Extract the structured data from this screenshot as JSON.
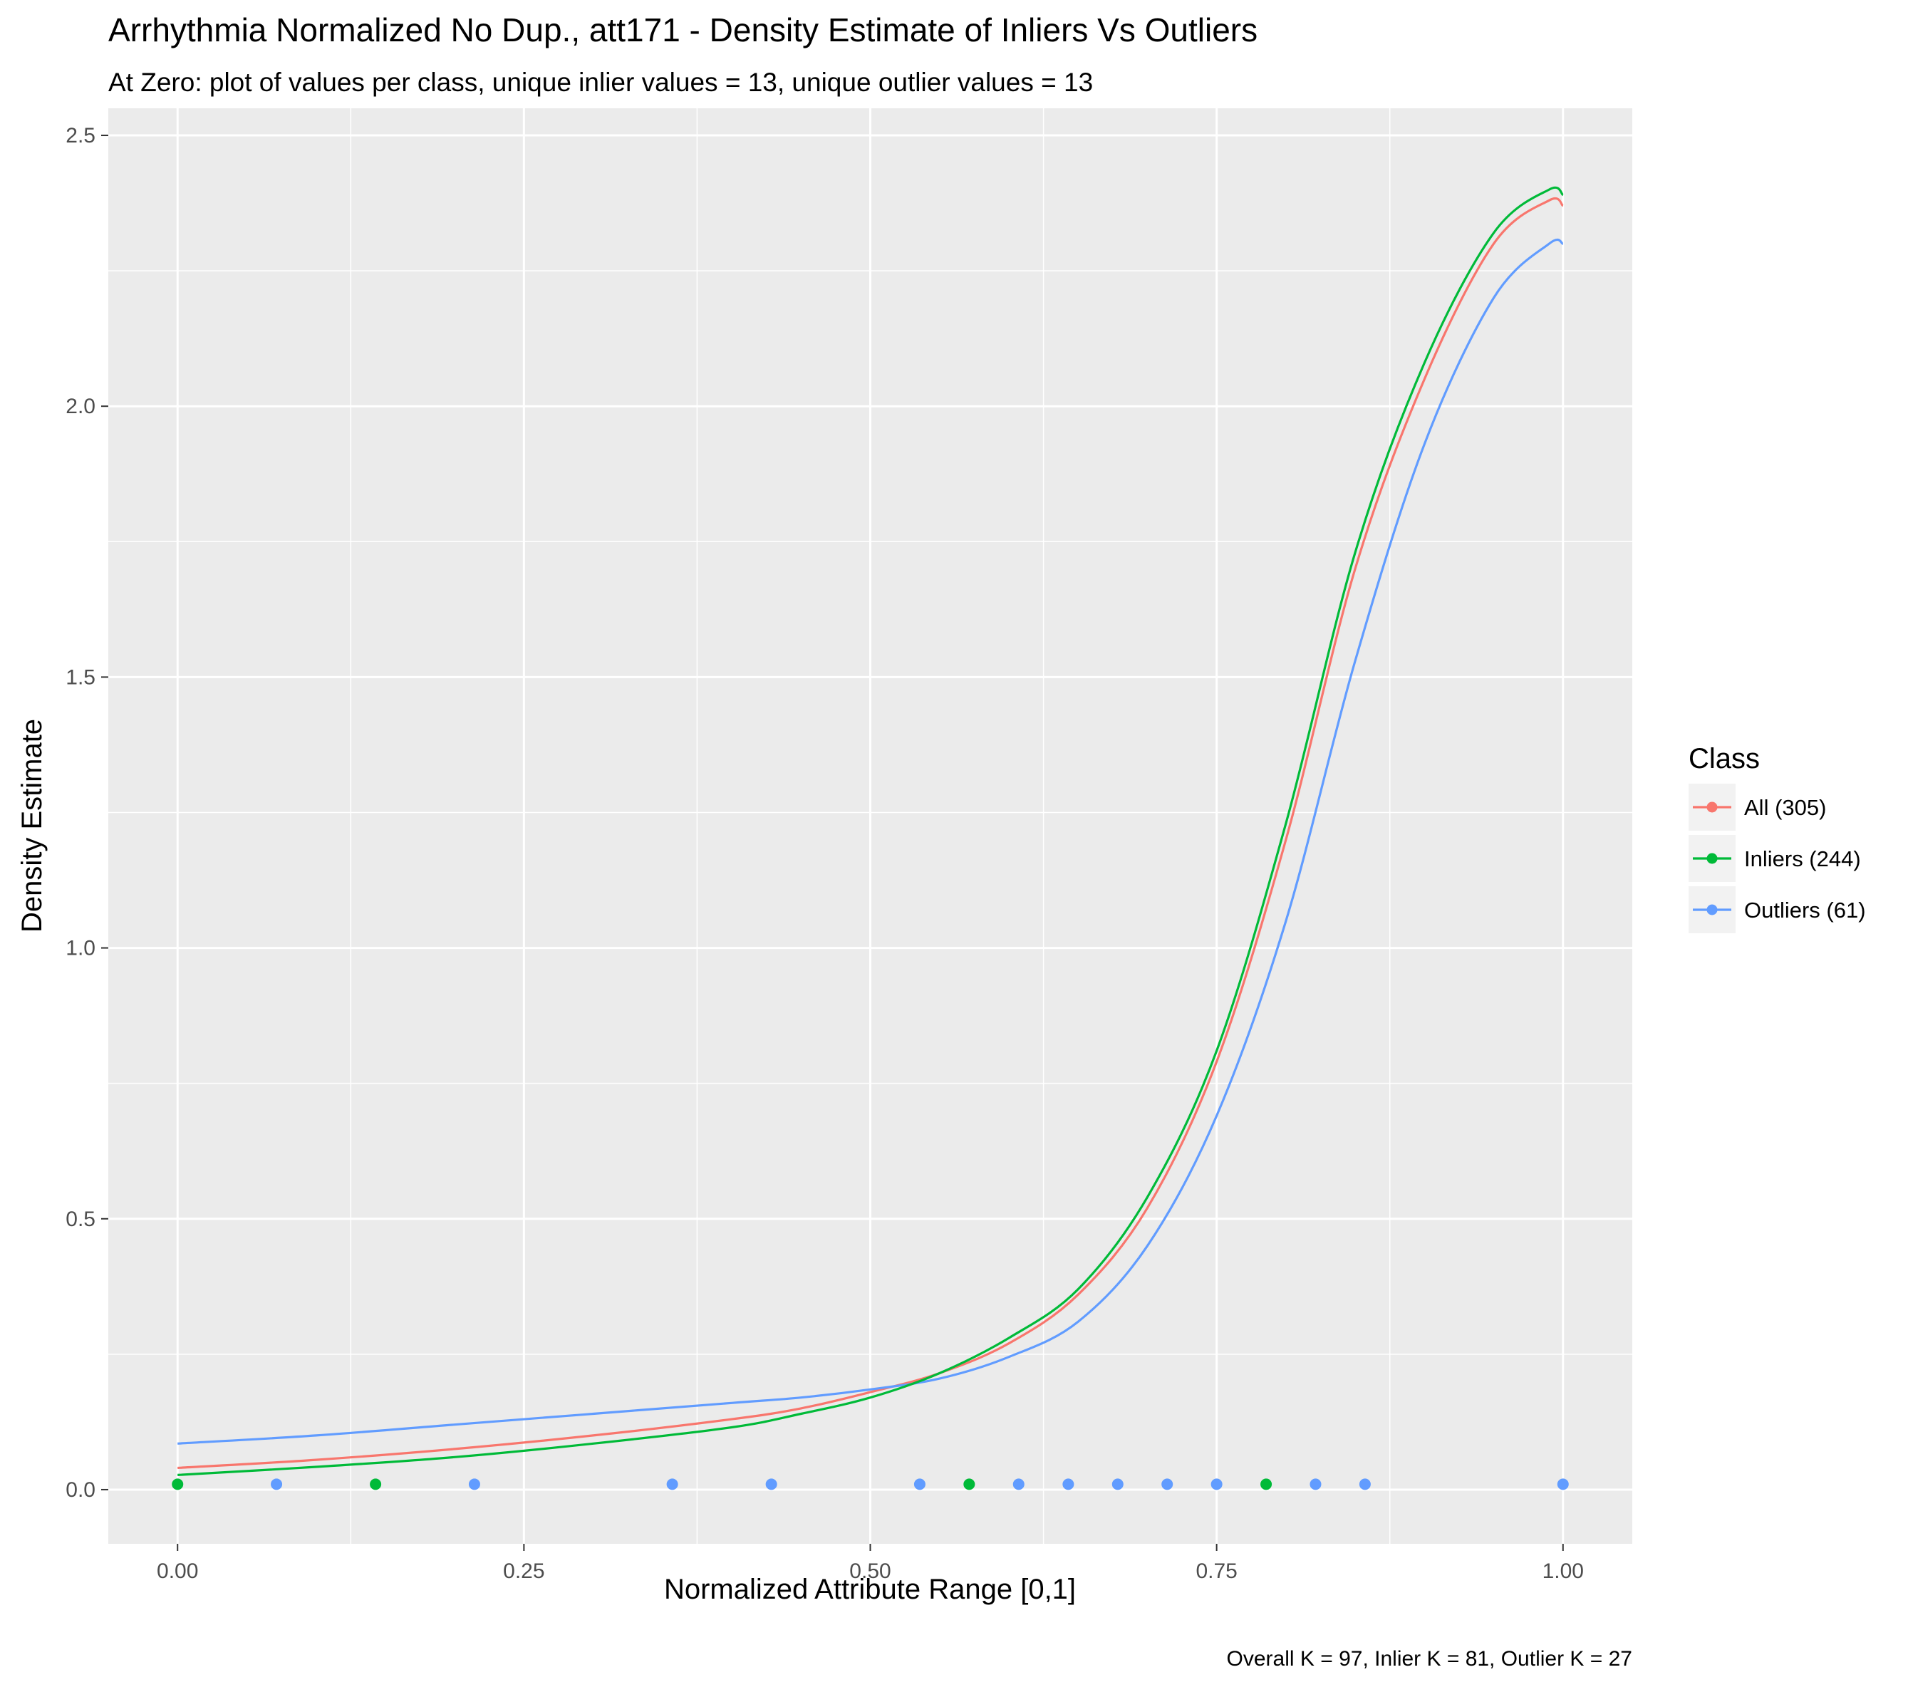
{
  "chart_data": {
    "type": "line",
    "title": "Arrhythmia Normalized No Dup., att171 - Density Estimate of Inliers Vs Outliers",
    "subtitle": "At Zero: plot of values per class, unique inlier values = 13, unique outlier values = 13",
    "caption": "Overall K = 97, Inlier K = 81, Outlier K = 27",
    "xlabel": "Normalized Attribute Range [0,1]",
    "ylabel": "Density Estimate",
    "xlim": [
      -0.05,
      1.05
    ],
    "ylim": [
      -0.1,
      2.55
    ],
    "x_ticks": [
      0,
      0.25,
      0.5,
      0.75,
      1
    ],
    "x_tick_labels": [
      "0.00",
      "0.25",
      "0.50",
      "0.75",
      "1.00"
    ],
    "y_ticks": [
      0,
      0.5,
      1,
      1.5,
      2,
      2.5
    ],
    "y_tick_labels": [
      "0.0",
      "0.5",
      "1.0",
      "1.5",
      "2.0",
      "2.5"
    ],
    "grid": true,
    "legend": {
      "title": "Class",
      "position": "right"
    },
    "series": [
      {
        "name": "All (305)",
        "color": "#F8766D",
        "x": [
          0,
          0.1,
          0.2,
          0.3,
          0.4,
          0.45,
          0.5,
          0.55,
          0.6,
          0.65,
          0.7,
          0.75,
          0.8,
          0.85,
          0.9,
          0.95,
          0.99,
          1.0
        ],
        "y": [
          0.04,
          0.055,
          0.075,
          0.1,
          0.13,
          0.15,
          0.18,
          0.215,
          0.27,
          0.36,
          0.52,
          0.79,
          1.2,
          1.7,
          2.05,
          2.3,
          2.38,
          2.37
        ]
      },
      {
        "name": "Inliers (244)",
        "color": "#00BA38",
        "x": [
          0,
          0.1,
          0.2,
          0.3,
          0.4,
          0.45,
          0.5,
          0.55,
          0.6,
          0.65,
          0.7,
          0.75,
          0.8,
          0.85,
          0.9,
          0.95,
          0.99,
          1.0
        ],
        "y": [
          0.027,
          0.042,
          0.06,
          0.085,
          0.115,
          0.14,
          0.17,
          0.215,
          0.28,
          0.37,
          0.54,
          0.81,
          1.23,
          1.73,
          2.08,
          2.32,
          2.4,
          2.39
        ]
      },
      {
        "name": "Outliers (61)",
        "color": "#619CFF",
        "x": [
          0,
          0.1,
          0.2,
          0.3,
          0.4,
          0.45,
          0.5,
          0.55,
          0.6,
          0.65,
          0.7,
          0.75,
          0.8,
          0.85,
          0.9,
          0.95,
          0.99,
          1.0
        ],
        "y": [
          0.085,
          0.1,
          0.12,
          0.14,
          0.16,
          0.17,
          0.185,
          0.205,
          0.245,
          0.31,
          0.45,
          0.69,
          1.05,
          1.53,
          1.93,
          2.2,
          2.3,
          2.3
        ]
      }
    ],
    "points": [
      {
        "x": 0.0,
        "y": 0.01,
        "color": "#00BA38"
      },
      {
        "x": 0.0714,
        "y": 0.01,
        "color": "#619CFF"
      },
      {
        "x": 0.1429,
        "y": 0.01,
        "color": "#00BA38"
      },
      {
        "x": 0.2143,
        "y": 0.01,
        "color": "#619CFF"
      },
      {
        "x": 0.3571,
        "y": 0.01,
        "color": "#619CFF"
      },
      {
        "x": 0.4286,
        "y": 0.01,
        "color": "#619CFF"
      },
      {
        "x": 0.5357,
        "y": 0.01,
        "color": "#619CFF"
      },
      {
        "x": 0.5714,
        "y": 0.01,
        "color": "#00BA38"
      },
      {
        "x": 0.6071,
        "y": 0.01,
        "color": "#619CFF"
      },
      {
        "x": 0.6429,
        "y": 0.01,
        "color": "#619CFF"
      },
      {
        "x": 0.6786,
        "y": 0.01,
        "color": "#619CFF"
      },
      {
        "x": 0.7143,
        "y": 0.01,
        "color": "#619CFF"
      },
      {
        "x": 0.75,
        "y": 0.01,
        "color": "#619CFF"
      },
      {
        "x": 0.7857,
        "y": 0.01,
        "color": "#00BA38"
      },
      {
        "x": 0.8214,
        "y": 0.01,
        "color": "#619CFF"
      },
      {
        "x": 0.8571,
        "y": 0.01,
        "color": "#619CFF"
      },
      {
        "x": 1.0,
        "y": 0.01,
        "color": "#619CFF"
      }
    ]
  }
}
